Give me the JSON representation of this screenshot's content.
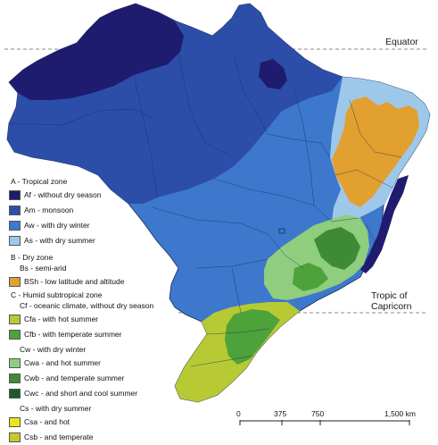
{
  "labels": {
    "equator": "Equator",
    "tropic_line1": "Tropic of",
    "tropic_line2": "Capricorn"
  },
  "legend": {
    "tropical": {
      "heading": "A - Tropical zone",
      "items": [
        {
          "code": "Af",
          "text": "Af - without dry season",
          "color": "#1f1b6e"
        },
        {
          "code": "Am",
          "text": "Am - monsoon",
          "color": "#2c4ea8"
        },
        {
          "code": "Aw",
          "text": "Aw - with dry winter",
          "color": "#3d78cc"
        },
        {
          "code": "As",
          "text": "As - with dry summer",
          "color": "#9ec8ea"
        }
      ]
    },
    "dry": {
      "heading": "B - Dry zone",
      "subheading": "Bs - semi-arid",
      "items": [
        {
          "code": "BSh",
          "text": "BSh - low latitude and altitude",
          "color": "#e2a030"
        }
      ]
    },
    "humid": {
      "heading": "C - Humid subtropical zone",
      "cf_heading": "Cf - oceanic climate, without dry season",
      "cf_items": [
        {
          "code": "Cfa",
          "text": "Cfa - with hot summer",
          "color": "#b7c933"
        },
        {
          "code": "Cfb",
          "text": "Cfb - with temperate summer",
          "color": "#4ea23a"
        }
      ],
      "cw_heading": "Cw - with dry winter",
      "cw_items": [
        {
          "code": "Cwa",
          "text": "Cwa - and hot summer",
          "color": "#8fcd7f"
        },
        {
          "code": "Cwb",
          "text": "Cwb - and temperate summer",
          "color": "#3f8a35"
        },
        {
          "code": "Cwc",
          "text": "Cwc - and short and cool summer",
          "color": "#1d5a2a"
        }
      ],
      "cs_heading": "Cs - with dry summer",
      "cs_items": [
        {
          "code": "Csa",
          "text": "Csa - and hot",
          "color": "#ece41c"
        },
        {
          "code": "Csb",
          "text": "Csb - and temperate",
          "color": "#c9c82a"
        }
      ]
    }
  },
  "scale": {
    "ticks": [
      "0",
      "375",
      "750",
      "1,500 km"
    ]
  }
}
